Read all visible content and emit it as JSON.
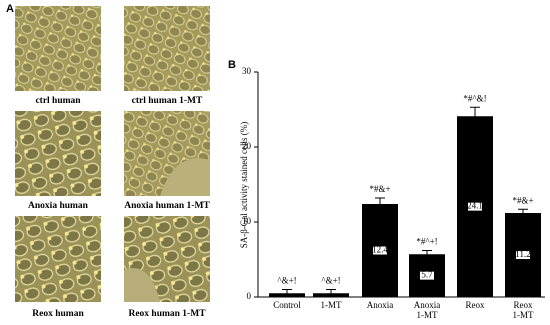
{
  "panel_labels": [
    "A",
    "B"
  ],
  "images": {
    "captions": [
      "ctrl human",
      "ctrl human 1-MT",
      "Anoxia human",
      "Anoxia human 1-MT",
      "Reox human",
      "Reox human 1-MT"
    ]
  },
  "chart_data": {
    "type": "bar",
    "y_label": "SA-β-Gal activity stained cells (%)",
    "categories": [
      "Control",
      "1-MT",
      "Anoxia",
      "Anoxia\n1-MT",
      "Reox",
      "Reox\n1-MT"
    ],
    "values": [
      0.5,
      0.5,
      12.4,
      5.7,
      24.1,
      11.2
    ],
    "errors": [
      0.5,
      0.5,
      0.8,
      0.5,
      1.2,
      0.5
    ],
    "annotations": [
      "^&+!",
      "^&+!",
      "*#&+",
      "*#^+!",
      "*#^&!",
      "*#&+"
    ],
    "color": "#000000",
    "ylim": [
      0,
      30
    ],
    "yticks": [
      0,
      10,
      20,
      30
    ]
  }
}
